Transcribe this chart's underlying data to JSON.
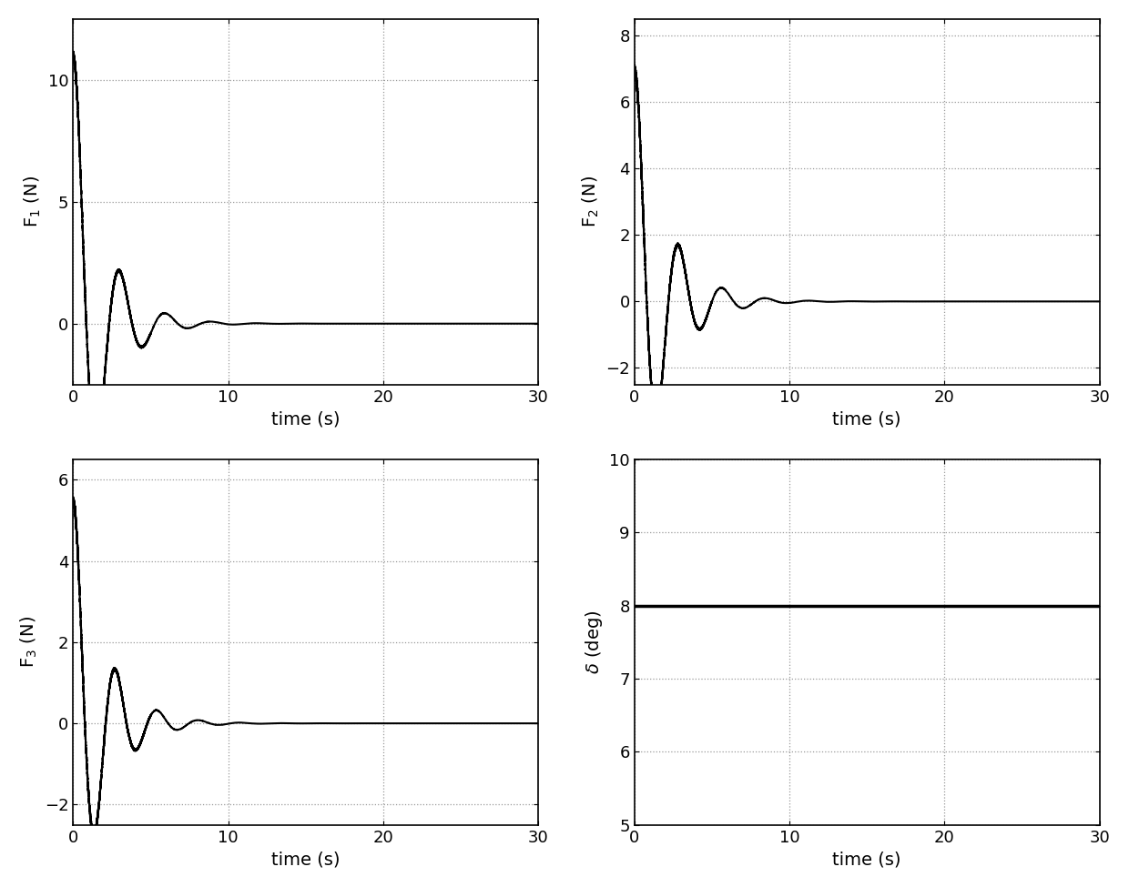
{
  "xlim": [
    0,
    30
  ],
  "xlabel": "time (s)",
  "xticks": [
    0,
    10,
    20,
    30
  ],
  "grid_color": "#aaaaaa",
  "line_color": "#000000",
  "line_width": 1.5,
  "background_color": "#ffffff",
  "ax1": {
    "ylabel": "F$_1$ (N)",
    "ylim": [
      -2.5,
      12.5
    ],
    "yticks": [
      0,
      5,
      10
    ]
  },
  "ax2": {
    "ylabel": "F$_2$ (N)",
    "ylim": [
      -2.5,
      8.5
    ],
    "yticks": [
      -2,
      0,
      2,
      4,
      6,
      8
    ]
  },
  "ax3": {
    "ylabel": "F$_3$ (N)",
    "ylim": [
      -2.5,
      6.5
    ],
    "yticks": [
      -2,
      0,
      2,
      4,
      6
    ]
  },
  "ax4": {
    "ylabel": "$\\delta$ (deg)",
    "ylim": [
      5,
      10
    ],
    "yticks": [
      5,
      6,
      7,
      8,
      9,
      10
    ],
    "delta_value": 8
  },
  "font_size": 14,
  "tick_font_size": 13
}
